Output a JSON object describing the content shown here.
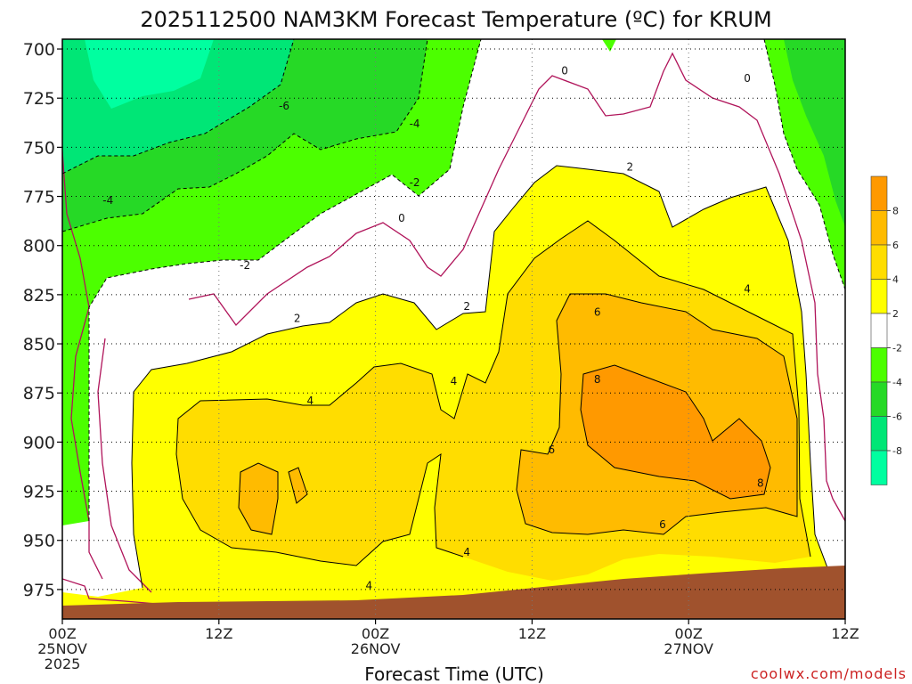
{
  "title": "2025112500 NAM3KM Forecast Temperature (ºC) for KRUM",
  "credit": "coolwx.com/models",
  "colors": {
    "ground": "#a0522d",
    "band_le_-8": "#00ffa0",
    "band_-8_-6": "#00e676",
    "band_-6_-4": "#26d926",
    "band_-4_-2": "#4cff00",
    "band_-2_2": "#ffffff",
    "band_2_4": "#ffff00",
    "band_4_6": "#ffdd00",
    "band_6_8": "#ffbb00",
    "band_ge_8": "#ff9900",
    "zero_contour": "#b0145a",
    "contour": "#000000"
  },
  "chart_data": {
    "type": "heatmap",
    "title": "2025112500 NAM3KM Forecast Temperature (ºC) for KRUM",
    "xlabel": "Forecast Time (UTC)",
    "ylabel": "",
    "x_unit": "forecast hour",
    "xlim": [
      0,
      60
    ],
    "ylim": [
      990,
      695
    ],
    "y_ticks": [
      700,
      725,
      750,
      775,
      800,
      825,
      850,
      875,
      900,
      925,
      950,
      975
    ],
    "x_ticks": [
      {
        "hour": 0,
        "label": [
          "00Z",
          "25NOV",
          "2025"
        ]
      },
      {
        "hour": 12,
        "label": [
          "12Z"
        ]
      },
      {
        "hour": 24,
        "label": [
          "00Z",
          "26NOV"
        ]
      },
      {
        "hour": 36,
        "label": [
          "12Z"
        ]
      },
      {
        "hour": 48,
        "label": [
          "00Z",
          "27NOV"
        ]
      },
      {
        "hour": 60,
        "label": [
          "12Z"
        ]
      }
    ],
    "grid": true,
    "colorbar": {
      "position": "right",
      "levels": [
        8,
        6,
        4,
        2,
        -2,
        -4,
        -6,
        -8
      ]
    },
    "contour_labels": [
      {
        "value": "-6",
        "hour": 17.0,
        "p": 729
      },
      {
        "value": "-4",
        "hour": 27.0,
        "p": 738
      },
      {
        "value": "-4",
        "hour": 3.5,
        "p": 777
      },
      {
        "value": "-2",
        "hour": 27.0,
        "p": 768
      },
      {
        "value": "-2",
        "hour": 14.0,
        "p": 810
      },
      {
        "value": "0",
        "hour": 38.5,
        "p": 711
      },
      {
        "value": "0",
        "hour": 52.5,
        "p": 715
      },
      {
        "value": "0",
        "hour": 26.0,
        "p": 786
      },
      {
        "value": "2",
        "hour": 43.5,
        "p": 760
      },
      {
        "value": "2",
        "hour": 18.0,
        "p": 837
      },
      {
        "value": "2",
        "hour": 31.0,
        "p": 831
      },
      {
        "value": "4",
        "hour": 52.5,
        "p": 822
      },
      {
        "value": "4",
        "hour": 30.0,
        "p": 869
      },
      {
        "value": "4",
        "hour": 19.0,
        "p": 879
      },
      {
        "value": "4",
        "hour": 31.0,
        "p": 956
      },
      {
        "value": "4",
        "hour": 23.5,
        "p": 973
      },
      {
        "value": "6",
        "hour": 41.0,
        "p": 834
      },
      {
        "value": "6",
        "hour": 37.5,
        "p": 904
      },
      {
        "value": "6",
        "hour": 46.0,
        "p": 942
      },
      {
        "value": "8",
        "hour": 41.0,
        "p": 868
      },
      {
        "value": "8",
        "hour": 53.5,
        "p": 921
      }
    ],
    "temperature_regions": [
      {
        "band": "-8 to -6 core",
        "hours": [
          3,
          9
        ],
        "p": [
          700,
          720
        ]
      },
      {
        "band": "-6 to -2 (cold aloft)",
        "hours": [
          0,
          31
        ],
        "p": [
          700,
          780
        ]
      },
      {
        "band": "-2 to 2",
        "hours": [
          2,
          57
        ],
        "p": [
          700,
          990
        ]
      },
      {
        "band": "2 to 4",
        "hours": [
          5,
          57
        ],
        "p": [
          755,
          985
        ]
      },
      {
        "band": "4 to 6",
        "hours": [
          9,
          56
        ],
        "p": [
          780,
          970
        ]
      },
      {
        "band": "6 to 8",
        "hours": [
          35,
          56
        ],
        "p": [
          815,
          950
        ]
      },
      {
        "band": "8 plus",
        "hours": [
          40,
          56
        ],
        "p": [
          860,
          920
        ]
      }
    ]
  },
  "colorbar_labels": [
    "8",
    "6",
    "4",
    "2",
    "-2",
    "-4",
    "-6",
    "-8"
  ]
}
